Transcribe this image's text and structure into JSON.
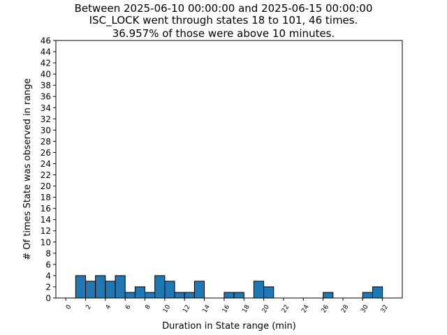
{
  "chart_data": {
    "type": "bar",
    "title_lines": [
      "Between 2025-06-10 00:00:00 and 2025-06-15 00:00:00",
      "ISC_LOCK went through states 18 to 101, 46 times.",
      "36.957% of those were above 10 minutes."
    ],
    "xlabel": "Duration in State range (min)",
    "ylabel": "# Of times State was observed in range",
    "xlim": [
      -1,
      34
    ],
    "ylim": [
      0,
      46
    ],
    "bin_width": 1,
    "x_ticks": [
      0,
      2,
      4,
      6,
      8,
      10,
      12,
      14,
      16,
      18,
      20,
      22,
      24,
      26,
      28,
      30,
      32
    ],
    "y_ticks": [
      0,
      2,
      4,
      6,
      8,
      10,
      12,
      14,
      16,
      18,
      20,
      22,
      24,
      26,
      28,
      30,
      32,
      34,
      36,
      38,
      40,
      42,
      44,
      46
    ],
    "bar_color": "#1f77b4",
    "bars": [
      {
        "x": 1,
        "value": 4
      },
      {
        "x": 2,
        "value": 3
      },
      {
        "x": 3,
        "value": 4
      },
      {
        "x": 4,
        "value": 3
      },
      {
        "x": 5,
        "value": 4
      },
      {
        "x": 6,
        "value": 1
      },
      {
        "x": 7,
        "value": 2
      },
      {
        "x": 8,
        "value": 1
      },
      {
        "x": 9,
        "value": 4
      },
      {
        "x": 10,
        "value": 3
      },
      {
        "x": 11,
        "value": 1
      },
      {
        "x": 12,
        "value": 1
      },
      {
        "x": 13,
        "value": 3
      },
      {
        "x": 16,
        "value": 1
      },
      {
        "x": 17,
        "value": 1
      },
      {
        "x": 19,
        "value": 3
      },
      {
        "x": 20,
        "value": 2
      },
      {
        "x": 26,
        "value": 1
      },
      {
        "x": 30,
        "value": 1
      },
      {
        "x": 31,
        "value": 2
      }
    ]
  }
}
